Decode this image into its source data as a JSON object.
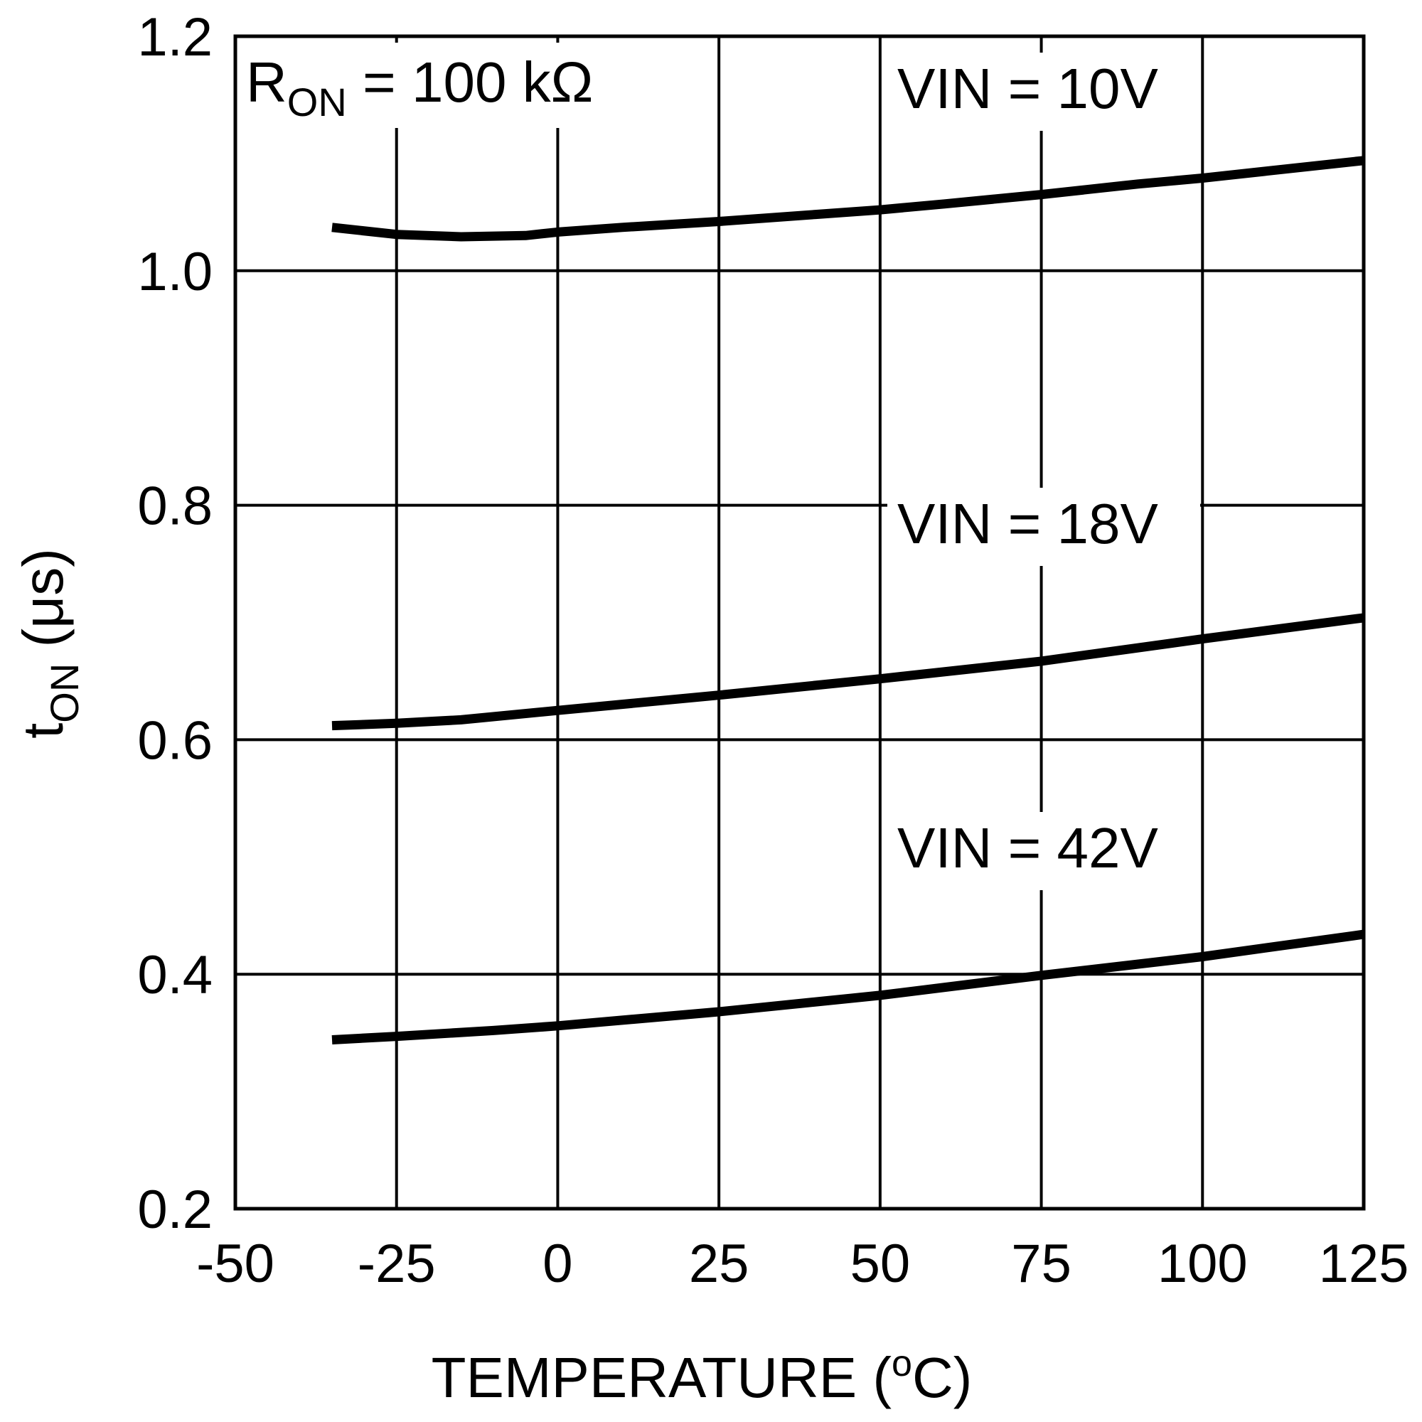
{
  "chart_data": {
    "type": "line",
    "title": "",
    "xlabel": "TEMPERATURE (",
    "xlabel_sup": "o",
    "xlabel_tail": "C)",
    "ylabel_main": "t",
    "ylabel_sub": "ON",
    "ylabel_tail": " (μs)",
    "xlim": [
      -50,
      125
    ],
    "ylim": [
      0.2,
      1.2
    ],
    "x_ticks": [
      -50,
      -25,
      0,
      25,
      50,
      75,
      100,
      125
    ],
    "y_ticks": [
      0.2,
      0.4,
      0.6,
      0.8,
      1.0,
      1.2
    ],
    "x_tick_labels": [
      "-50",
      "-25",
      "0",
      "25",
      "50",
      "75",
      "100",
      "125"
    ],
    "y_tick_labels": [
      "0.2",
      "0.4",
      "0.6",
      "0.8",
      "1.0",
      "1.2"
    ],
    "grid": true,
    "annotation": {
      "main": "R",
      "sub": "ON",
      "tail": " = 100 kΩ"
    },
    "series": [
      {
        "name": "VIN = 10V",
        "x": [
          -35,
          -25,
          -15,
          -5,
          0,
          10,
          25,
          40,
          50,
          60,
          75,
          90,
          100,
          110,
          125
        ],
        "values": [
          1.037,
          1.031,
          1.029,
          1.03,
          1.033,
          1.037,
          1.042,
          1.048,
          1.052,
          1.057,
          1.065,
          1.074,
          1.079,
          1.085,
          1.094
        ]
      },
      {
        "name": "VIN = 18V",
        "x": [
          -35,
          -25,
          -15,
          0,
          25,
          50,
          75,
          100,
          125
        ],
        "values": [
          0.612,
          0.614,
          0.617,
          0.625,
          0.638,
          0.652,
          0.667,
          0.686,
          0.704
        ]
      },
      {
        "name": "VIN = 42V",
        "x": [
          -35,
          -25,
          -10,
          0,
          25,
          50,
          75,
          100,
          125
        ],
        "values": [
          0.344,
          0.347,
          0.352,
          0.356,
          0.368,
          0.382,
          0.399,
          0.415,
          0.434
        ]
      }
    ]
  }
}
